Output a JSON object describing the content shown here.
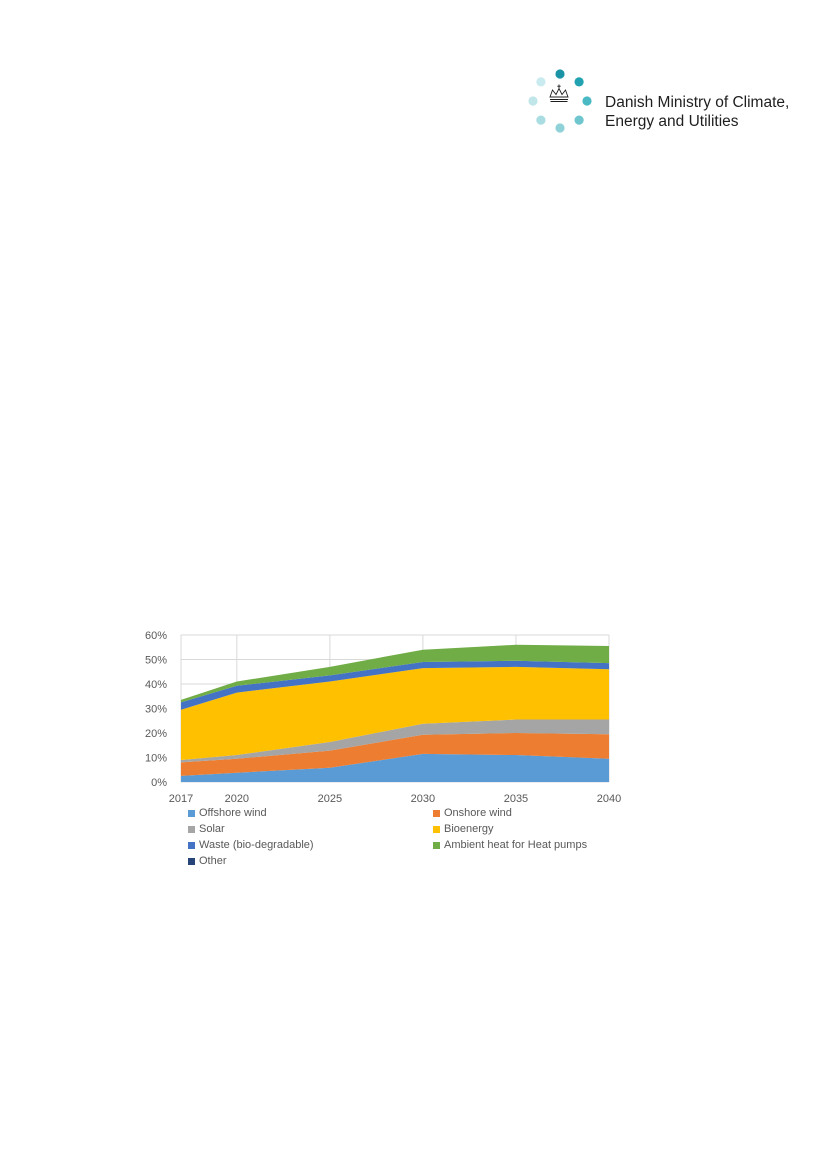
{
  "header": {
    "logo": {
      "line1": "Danish Ministry of Climate,",
      "line2": "Energy and Utilities",
      "dot_colors": [
        "#1a94a5",
        "#22a2b1",
        "#4ab9c3",
        "#6fc6ce",
        "#8ed2d8",
        "#a9dde2",
        "#c0e6ea",
        "#c9eaee"
      ],
      "emblem_icon": "crown-icon"
    }
  },
  "chart_data": {
    "type": "area",
    "stacked": true,
    "x": [
      "2017",
      "2020",
      "2025",
      "2030",
      "2035",
      "2040"
    ],
    "series": [
      {
        "name": "Offshore wind",
        "color": "#5b9bd5",
        "values": [
          2.5,
          3.8,
          5.8,
          11.5,
          11.0,
          9.5
        ]
      },
      {
        "name": "Onshore wind",
        "color": "#ed7d31",
        "values": [
          5.5,
          5.7,
          7.0,
          7.8,
          9.0,
          10.0
        ]
      },
      {
        "name": "Solar",
        "color": "#a5a5a5",
        "values": [
          1.0,
          1.5,
          3.5,
          4.5,
          5.5,
          6.0
        ]
      },
      {
        "name": "Bioenergy",
        "color": "#ffc000",
        "values": [
          20.5,
          25.5,
          24.7,
          22.7,
          21.5,
          20.5
        ]
      },
      {
        "name": "Waste (bio-degradable)",
        "color": "#4472c4",
        "values": [
          3.0,
          2.8,
          2.5,
          2.5,
          2.5,
          2.5
        ]
      },
      {
        "name": "Ambient heat for Heat pumps",
        "color": "#70ad47",
        "values": [
          1.0,
          1.7,
          3.5,
          5.0,
          6.5,
          7.0
        ]
      },
      {
        "name": "Other",
        "color": "#264478",
        "values": [
          0,
          0,
          0,
          0,
          0,
          0
        ]
      }
    ],
    "y_ticks": [
      "0%",
      "10%",
      "20%",
      "30%",
      "40%",
      "50%",
      "60%"
    ],
    "ylim": [
      0,
      60
    ],
    "y_format": "percent",
    "grid": true,
    "legend_position": "bottom",
    "title": "",
    "xlabel": "",
    "ylabel": ""
  }
}
